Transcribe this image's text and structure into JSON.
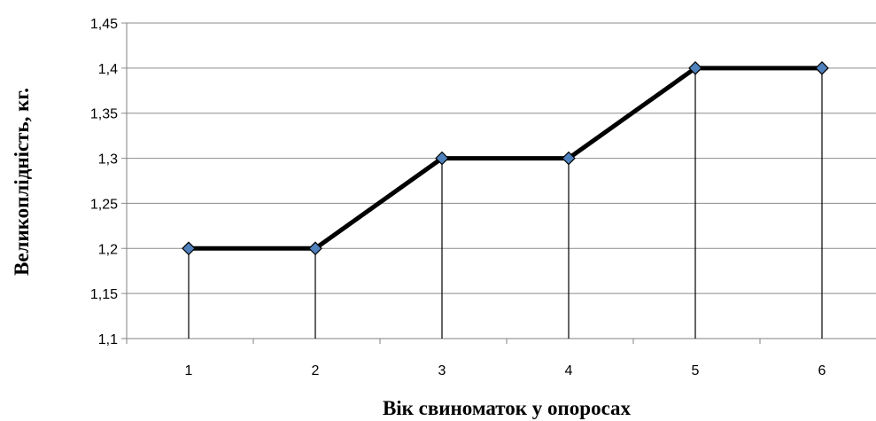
{
  "chart_data": {
    "type": "line",
    "title": "",
    "xlabel": "Вік свиноматок у опоросах",
    "ylabel": "Великоплідність, кг.",
    "categories": [
      "1",
      "2",
      "3",
      "4",
      "5",
      "6"
    ],
    "series": [
      {
        "values": [
          1.2,
          1.2,
          1.3,
          1.3,
          1.4,
          1.4
        ]
      }
    ],
    "ylim": [
      1.1,
      1.45
    ],
    "yticks": [
      "1,1",
      "1,15",
      "1,2",
      "1,25",
      "1,3",
      "1,35",
      "1,4",
      "1,45"
    ],
    "grid": "horizontal",
    "drop_lines": true,
    "legend": "none",
    "colors": {
      "line": "#000000",
      "marker_fill": "#4F81BD",
      "marker_edge": "#000000",
      "grid": "#8C8C8C"
    }
  }
}
